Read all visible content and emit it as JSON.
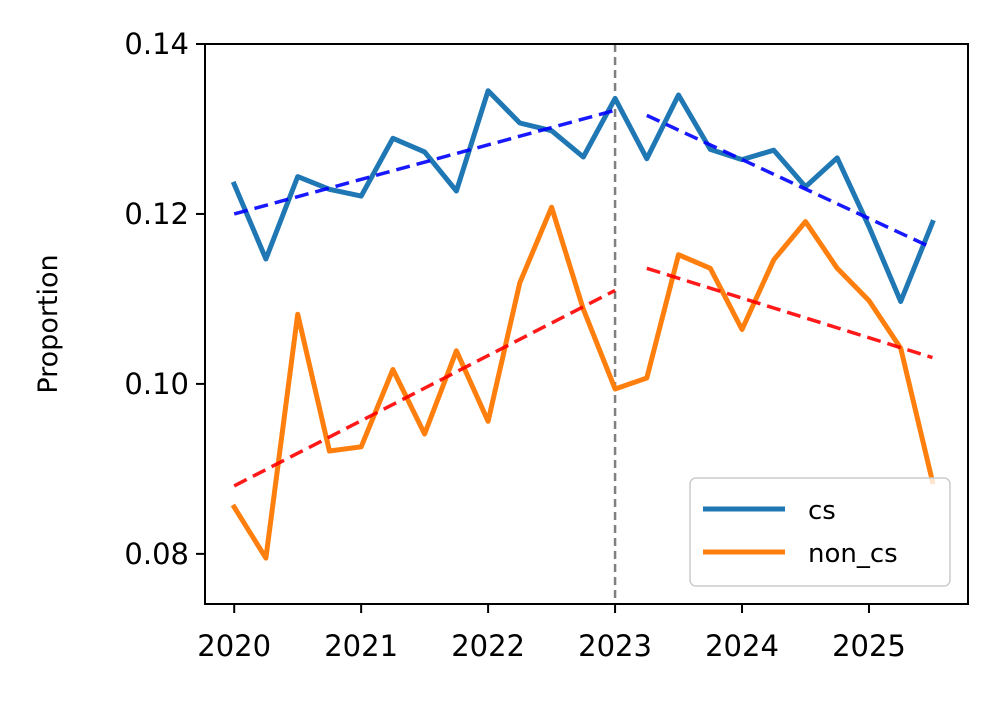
{
  "chart_data": {
    "type": "line",
    "title": "",
    "xlabel": "",
    "ylabel": "Proportion",
    "xlim": [
      2019.77,
      2025.78
    ],
    "ylim": [
      0.0741,
      0.14
    ],
    "x_ticks": [
      2020,
      2021,
      2022,
      2023,
      2024,
      2025
    ],
    "x_tick_labels": [
      "2020",
      "2021",
      "2022",
      "2023",
      "2024",
      "2025"
    ],
    "y_ticks": [
      0.08,
      0.1,
      0.12,
      0.14
    ],
    "y_tick_labels": [
      "0.08",
      "0.10",
      "0.12",
      "0.14"
    ],
    "grid": false,
    "legend_position": "lower-right",
    "x": [
      2020.0,
      2020.25,
      2020.5,
      2020.75,
      2021.0,
      2021.25,
      2021.5,
      2021.75,
      2022.0,
      2022.25,
      2022.5,
      2022.75,
      2023.0,
      2023.25,
      2023.5,
      2023.75,
      2024.0,
      2024.25,
      2024.5,
      2024.75,
      2025.0,
      2025.25,
      2025.5
    ],
    "series": [
      {
        "name": "cs",
        "color": "#1f77b4",
        "values": [
          0.1235,
          0.1147,
          0.1244,
          0.1229,
          0.1221,
          0.1289,
          0.1273,
          0.1227,
          0.1345,
          0.1307,
          0.1298,
          0.1267,
          0.1336,
          0.1265,
          0.134,
          0.1276,
          0.1264,
          0.1275,
          0.1232,
          0.1266,
          0.1185,
          0.1097,
          0.119
        ]
      },
      {
        "name": "non_cs",
        "color": "#ff7f0e",
        "values": [
          0.0855,
          0.0795,
          0.1082,
          0.0921,
          0.0926,
          0.1017,
          0.0941,
          0.1039,
          0.0956,
          0.1119,
          0.1208,
          0.1088,
          0.0994,
          0.1007,
          0.1152,
          0.1136,
          0.1064,
          0.1146,
          0.1191,
          0.1136,
          0.1098,
          0.1042,
          0.0885
        ]
      }
    ],
    "trend_lines": [
      {
        "name": "cs-trend-before",
        "color": "#0000ff",
        "x": [
          2020.0,
          2023.0
        ],
        "values": [
          0.12,
          0.1322
        ]
      },
      {
        "name": "cs-trend-after",
        "color": "#0000ff",
        "x": [
          2023.25,
          2025.5
        ],
        "values": [
          0.1316,
          0.116
        ]
      },
      {
        "name": "non_cs-trend-before",
        "color": "#ff0000",
        "x": [
          2020.0,
          2023.0
        ],
        "values": [
          0.088,
          0.111
        ]
      },
      {
        "name": "non_cs-trend-after",
        "color": "#ff0000",
        "x": [
          2023.25,
          2025.5
        ],
        "values": [
          0.1136,
          0.1031
        ]
      }
    ],
    "vertical_marker": {
      "x": 2023.0,
      "color": "#808080"
    }
  }
}
